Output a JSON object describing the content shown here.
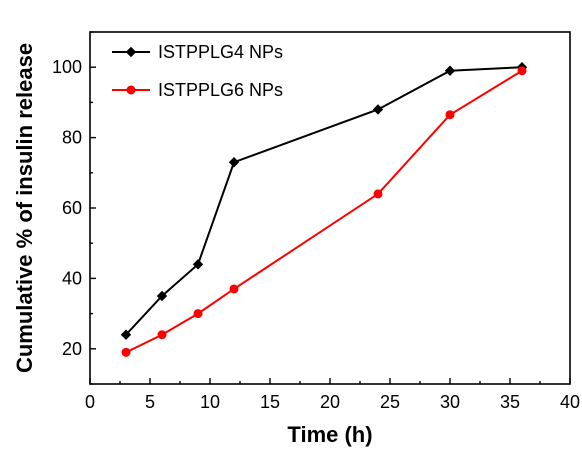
{
  "chart_data": {
    "type": "line",
    "xlabel": "Time (h)",
    "ylabel": "Cumulative % of insulin release",
    "xlim": [
      0,
      40
    ],
    "ylim": [
      10,
      110
    ],
    "xticks": [
      0,
      5,
      10,
      15,
      20,
      25,
      30,
      35,
      40
    ],
    "yticks": [
      20,
      40,
      60,
      80,
      100
    ],
    "grid": false,
    "legend_position": "top-left",
    "series": [
      {
        "name": "ISTPPLG4 NPs",
        "color": "#000000",
        "marker": "diamond",
        "x": [
          3,
          6,
          9,
          12,
          24,
          30,
          36
        ],
        "y": [
          24,
          35,
          44,
          73,
          88,
          99,
          100
        ]
      },
      {
        "name": "ISTPPLG6 NPs",
        "color": "#ff0000",
        "marker": "circle",
        "x": [
          3,
          6,
          9,
          12,
          24,
          30,
          36
        ],
        "y": [
          19,
          24,
          30,
          37,
          64,
          86.5,
          99
        ]
      }
    ]
  }
}
